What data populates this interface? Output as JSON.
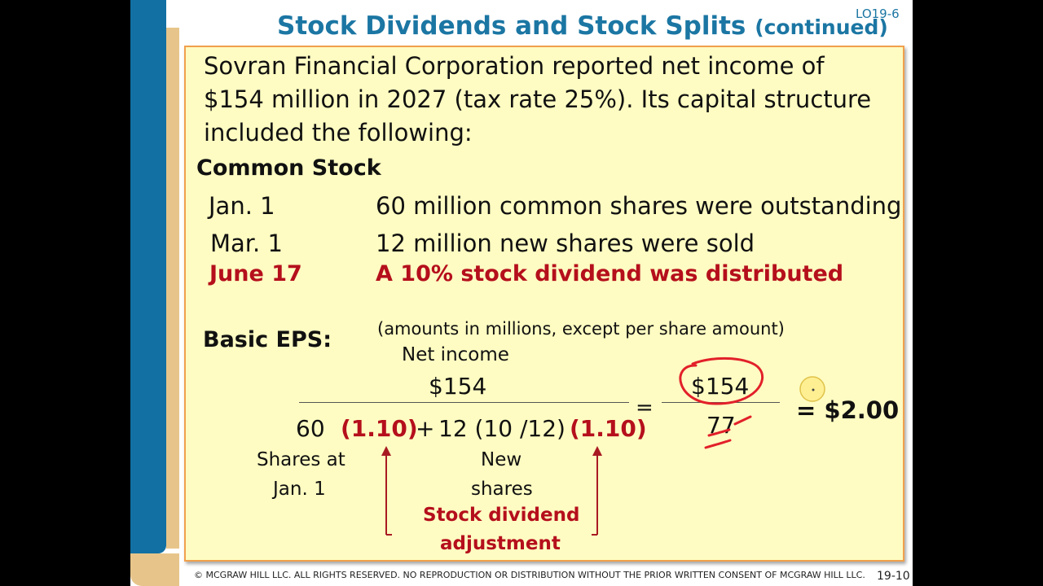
{
  "slide": {
    "title": "Stock Dividends and Stock Splits",
    "title_suffix": "(continued)",
    "lo_tag": "LO19-6",
    "intro_lines": [
      "Sovran Financial Corporation reported net income of",
      "$154 million in 2027 (tax rate 25%). Its capital structure",
      "included the following:"
    ],
    "section_heading": "Common Stock",
    "events": [
      {
        "date": "Jan. 1",
        "text": "60 million common shares were outstanding"
      },
      {
        "date": "Mar. 1",
        "text": "12 million new shares were sold"
      },
      {
        "date": "June 17",
        "text": "A 10% stock dividend was distributed"
      }
    ],
    "eps": {
      "label": "Basic EPS:",
      "note": "(amounts in millions, except per share amount)",
      "numerator_label": "Net income",
      "numerator": "$154",
      "den_base": "60",
      "den_adj1": "(1.10)",
      "den_plus": "+",
      "den_new": "12 (10 /12)",
      "den_adj2": "(1.10)",
      "eq1": "=",
      "num2": "$154",
      "den2": "77",
      "result": "= $2.00",
      "label_shares_line1": "Shares at",
      "label_shares_line2": "Jan. 1",
      "label_new_line1": "New",
      "label_new_line2": "shares",
      "label_adj_line1": "Stock dividend",
      "label_adj_line2": "adjustment"
    },
    "footer": "© MCGRAW HILL LLC. ALL RIGHTS RESERVED. NO REPRODUCTION OR DISTRIBUTION WITHOUT THE PRIOR WRITTEN CONSENT OF MCGRAW HILL LLC.",
    "page_number": "19-10"
  }
}
